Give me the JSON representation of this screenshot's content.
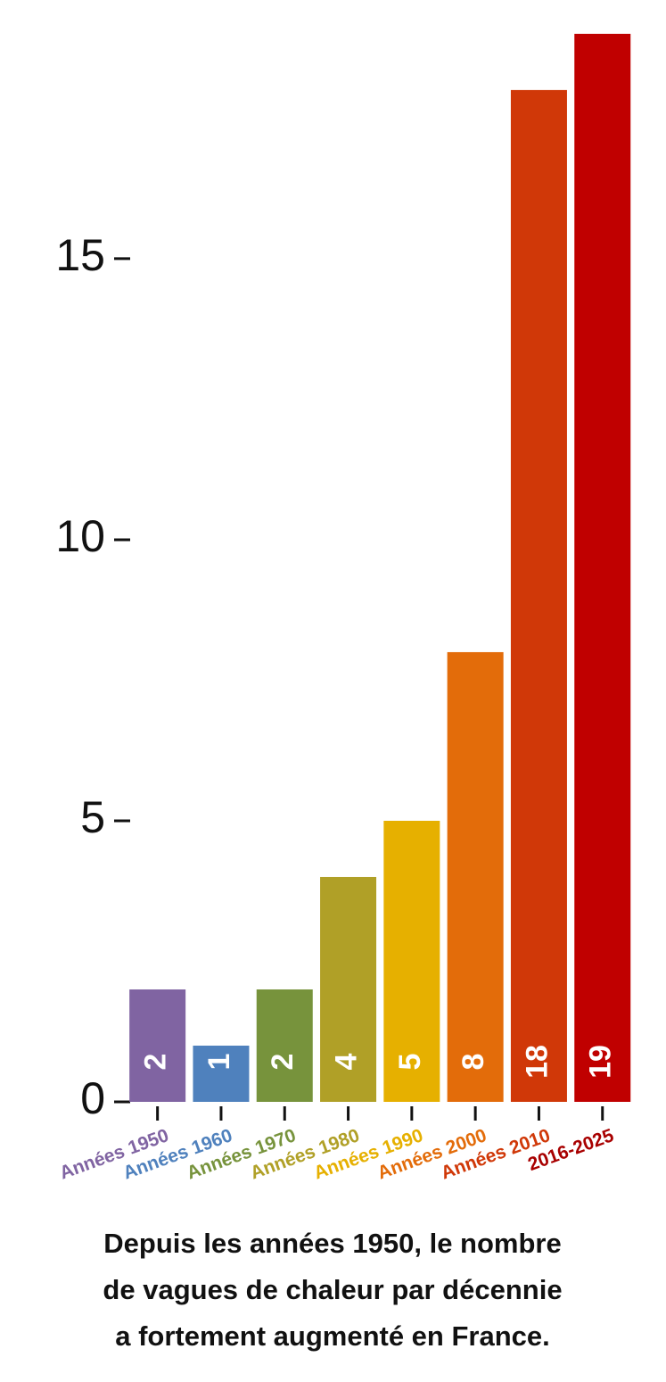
{
  "chart_data": {
    "type": "bar",
    "categories": [
      "Années 1950",
      "Années 1960",
      "Années 1970",
      "Années 1980",
      "Années 1990",
      "Années 2000",
      "Années 2010",
      "2016-2025"
    ],
    "values": [
      2,
      1,
      2,
      4,
      5,
      8,
      18,
      19
    ],
    "colors": [
      "#8064a2",
      "#4f81bd",
      "#77933c",
      "#b0a027",
      "#e6b000",
      "#e36c0a",
      "#d03808",
      "#c00000"
    ],
    "label_colors": [
      "#8064a2",
      "#4f81bd",
      "#77933c",
      "#b0a027",
      "#e6b000",
      "#e36c0a",
      "#d03808",
      "#a80000"
    ],
    "ylim": [
      0,
      19.3
    ],
    "yticks": [
      0,
      5,
      10,
      15
    ],
    "caption": [
      "Depuis les années 1950, le nombre",
      "de vagues de chaleur par décennie",
      "a fortement augmenté en France."
    ]
  }
}
